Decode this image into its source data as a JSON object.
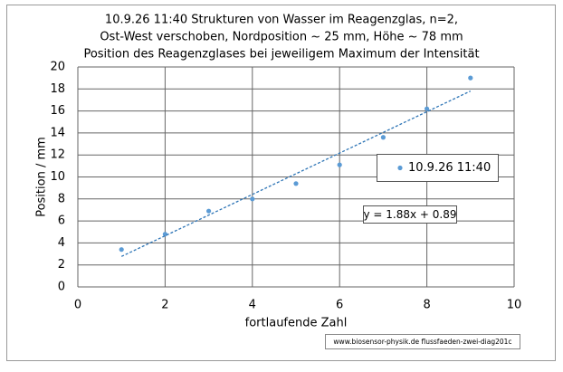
{
  "chart_data": {
    "type": "scatter",
    "title": [
      "10.9.26 11:40  Strukturen von Wasser im Reagenzglas, n=2,",
      "Ost-West verschoben, Nordposition ~ 25  mm, Höhe ~ 78 mm",
      "Position des Reagenzglases bei jeweiligem Maximum der Intensität"
    ],
    "x_label": "fortlaufende Zahl",
    "y_label": "Position / mm",
    "series": [
      {
        "name": "10.9.26 11:40",
        "color": "#5b9bd5",
        "x": [
          1,
          2,
          3,
          4,
          5,
          6,
          7,
          8,
          9
        ],
        "values": [
          3.4,
          4.8,
          6.9,
          8.0,
          9.4,
          11.1,
          13.6,
          16.2,
          19.0
        ]
      }
    ],
    "trendline": {
      "slope": 1.88,
      "intercept": 0.89,
      "label": "y = 1.88x + 0.89",
      "color": "#2e75b6"
    },
    "xlim": [
      0,
      10
    ],
    "xticks": [
      0,
      2,
      4,
      6,
      8,
      10
    ],
    "ylim": [
      0,
      20
    ],
    "yticks": [
      0,
      2,
      4,
      6,
      8,
      10,
      12,
      14,
      16,
      18,
      20
    ],
    "grid": true,
    "footer": "www.biosensor-physik.de  flussfaeden-zwei-diag201c"
  }
}
